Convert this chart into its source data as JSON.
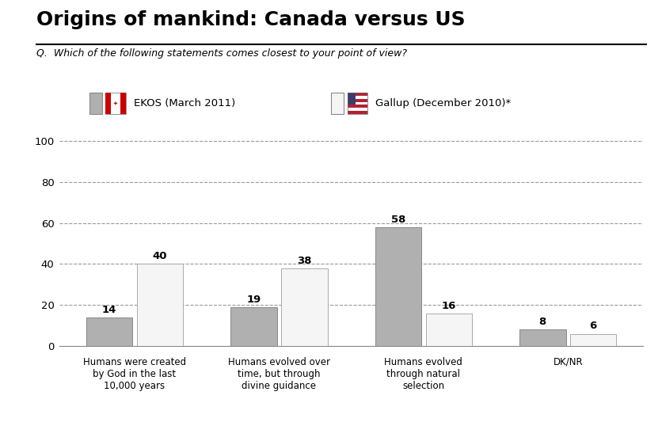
{
  "title": "Origins of mankind: Canada versus US",
  "subtitle": "Q.  Which of the following statements comes closest to your point of view?",
  "categories": [
    "Humans were created\nby God in the last\n10,000 years",
    "Humans evolved over\ntime, but through\ndivine guidance",
    "Humans evolved\nthrough natural\nselection",
    "DK/NR"
  ],
  "ekos_values": [
    14,
    19,
    58,
    8
  ],
  "gallup_values": [
    40,
    38,
    16,
    6
  ],
  "ekos_color": "#b0b0b0",
  "gallup_color": "#f5f5f5",
  "bar_edge_color": "#888888",
  "gallup_edge_color": "#aaaaaa",
  "ylim": [
    0,
    107
  ],
  "yticks": [
    0,
    20,
    40,
    60,
    80,
    100
  ],
  "legend_ekos": "EKOS (March 2011)",
  "legend_gallup": "Gallup (December 2010)*",
  "background_color": "#ffffff",
  "grid_color": "#999999",
  "title_fontsize": 18,
  "subtitle_fontsize": 9,
  "label_fontsize": 8.5,
  "value_fontsize": 9.5,
  "legend_fontsize": 9.5
}
